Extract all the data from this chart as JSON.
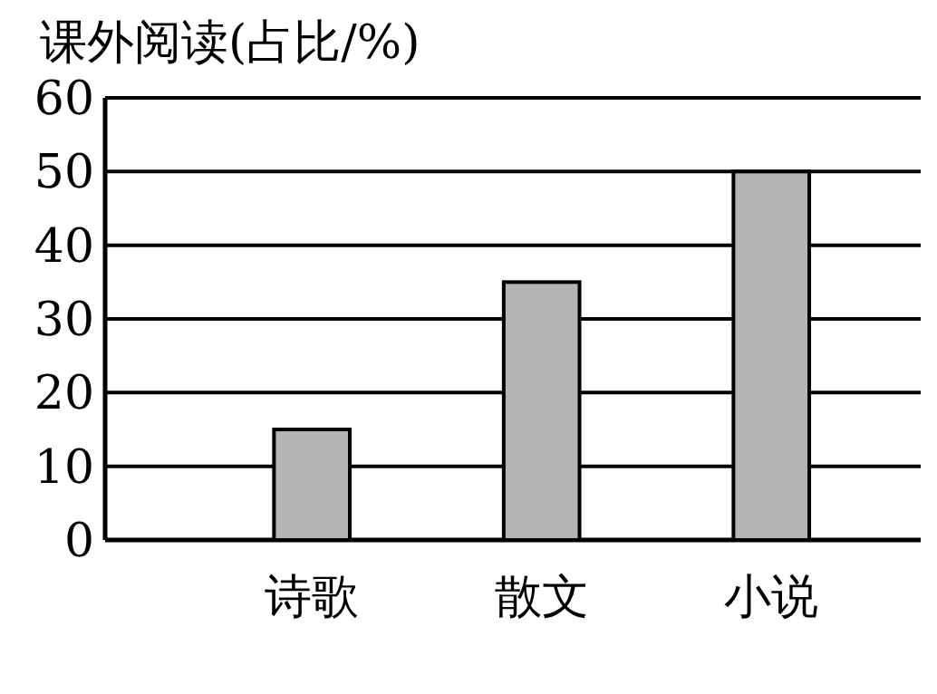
{
  "chart_data": {
    "type": "bar",
    "title": "课外阅读(占比/%)",
    "categories": [
      "诗歌",
      "散文",
      "小说"
    ],
    "values": [
      15,
      35,
      50
    ],
    "color": "#b4b4b4",
    "ylim": [
      0,
      60
    ],
    "yticks": [
      0,
      10,
      20,
      30,
      40,
      50,
      60
    ],
    "grid": "y"
  }
}
